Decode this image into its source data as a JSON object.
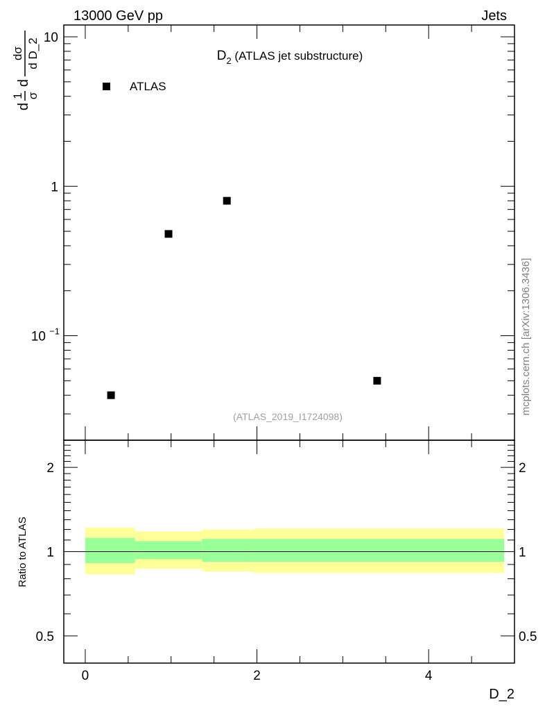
{
  "header": {
    "left_label": "13000 GeV pp",
    "right_label": "Jets"
  },
  "side_label": "mcplots.cern.ch [arXiv:1306.3436]",
  "analysis_label": "(ATLAS_2019_I1724098)",
  "chart_data": [
    {
      "type": "scatter",
      "title_main": "D",
      "title_sub": "2",
      "title_rest": " (ATLAS jet substructure)",
      "ylabel": {
        "part1_num": "1",
        "part1_den": "σ",
        "part1_prefix": "d",
        "part2_num": "dσ",
        "part2_den": "d D_2",
        "part2_prefix": "d"
      },
      "yscale": "log",
      "ylim": [
        0.02,
        12
      ],
      "xlim": [
        -0.25,
        5.0
      ],
      "y_ticks": [
        {
          "value": 10,
          "label": "10"
        },
        {
          "value": 1,
          "label": "1"
        },
        {
          "value": 0.1,
          "label": "10",
          "exp": "−1"
        }
      ],
      "legend": {
        "position": "top-left",
        "entries": [
          "ATLAS"
        ]
      },
      "series": [
        {
          "name": "ATLAS",
          "color": "#000000",
          "marker": "square",
          "x": [
            0.3,
            0.97,
            1.65,
            3.4
          ],
          "y": [
            0.04,
            0.48,
            0.8,
            0.05
          ]
        }
      ]
    },
    {
      "type": "area",
      "ylabel": "Ratio to ATLAS",
      "xlabel": "D_2",
      "yscale": "log",
      "ylim": [
        0.4,
        2.5
      ],
      "xlim": [
        -0.25,
        5.0
      ],
      "x_ticks": [
        {
          "value": 0,
          "label": "0"
        },
        {
          "value": 2,
          "label": "2"
        },
        {
          "value": 4,
          "label": "4"
        }
      ],
      "y_ticks": [
        {
          "value": 2,
          "label": "2"
        },
        {
          "value": 1,
          "label": "1"
        },
        {
          "value": 0.5,
          "label": "0.5"
        }
      ],
      "reference_line": 1,
      "bands": [
        {
          "xlo": 0.0,
          "xhi": 0.58,
          "inner": [
            0.91,
            1.12
          ],
          "outer": [
            0.83,
            1.22
          ]
        },
        {
          "xlo": 0.58,
          "xhi": 1.36,
          "inner": [
            0.94,
            1.09
          ],
          "outer": [
            0.87,
            1.18
          ]
        },
        {
          "xlo": 1.36,
          "xhi": 1.96,
          "inner": [
            0.92,
            1.11
          ],
          "outer": [
            0.85,
            1.2
          ]
        },
        {
          "xlo": 1.96,
          "xhi": 4.88,
          "inner": [
            0.92,
            1.11
          ],
          "outer": [
            0.84,
            1.21
          ]
        }
      ],
      "colors": {
        "inner": "#99ff99",
        "outer": "#ffff99"
      }
    }
  ]
}
